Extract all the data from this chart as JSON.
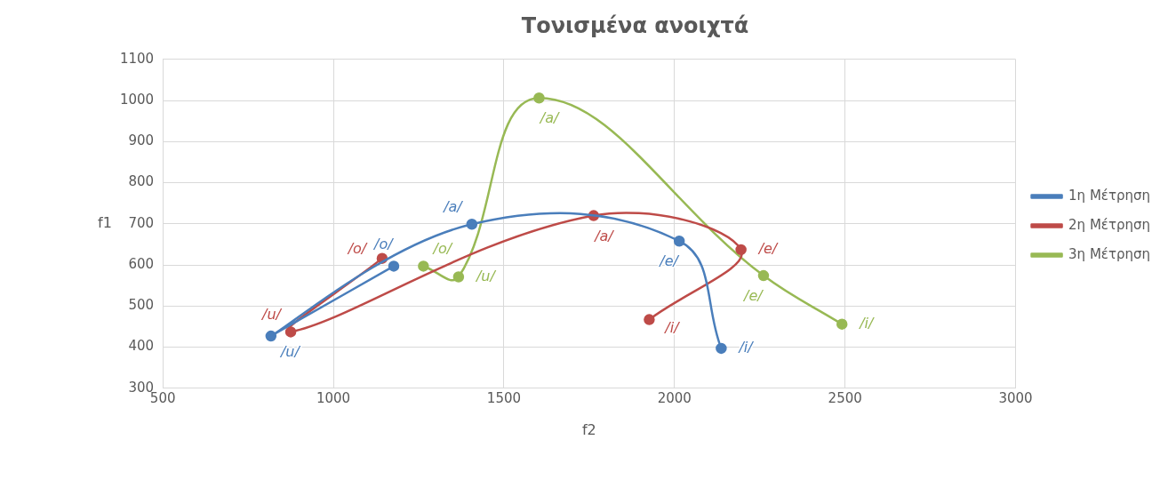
{
  "chart_data": {
    "type": "line",
    "title": "Τονισμένα ανοιχτά",
    "xlabel": "f2",
    "ylabel": "f1",
    "xlim": [
      500,
      3000
    ],
    "xticks": [
      500,
      1000,
      1500,
      2000,
      2500,
      3000
    ],
    "ylim": [
      300,
      1100
    ],
    "yticks": [
      300,
      400,
      500,
      600,
      700,
      800,
      900,
      1000,
      1100
    ],
    "grid": true,
    "legend": "right",
    "marker": "circle",
    "series": [
      {
        "name": "1η Μέτρηση",
        "color": "#4a7ebb",
        "x": [
          1177,
          817,
          1406,
          2014,
          2137
        ],
        "values": [
          597,
          427,
          699,
          658,
          397
        ],
        "value_labels": [
          "/o/",
          "/u/",
          "/a/",
          "/e/",
          "/i/"
        ]
      },
      {
        "name": "2η Μέτρηση",
        "color": "#be4b48",
        "x": [
          1143,
          875,
          1763,
          2195,
          1926
        ],
        "values": [
          616,
          437,
          720,
          637,
          467
        ],
        "value_labels": [
          "/o/",
          "/u/",
          "/a/",
          "/e/",
          "/i/"
        ]
      },
      {
        "name": "3η Μέτρηση",
        "color": "#98b954",
        "x": [
          1264,
          1367,
          1603,
          2261,
          2491
        ],
        "values": [
          597,
          571,
          1006,
          574,
          456
        ],
        "value_labels": [
          "/o/",
          "/u/",
          "/a/",
          "/e/",
          "/i/"
        ]
      }
    ]
  }
}
